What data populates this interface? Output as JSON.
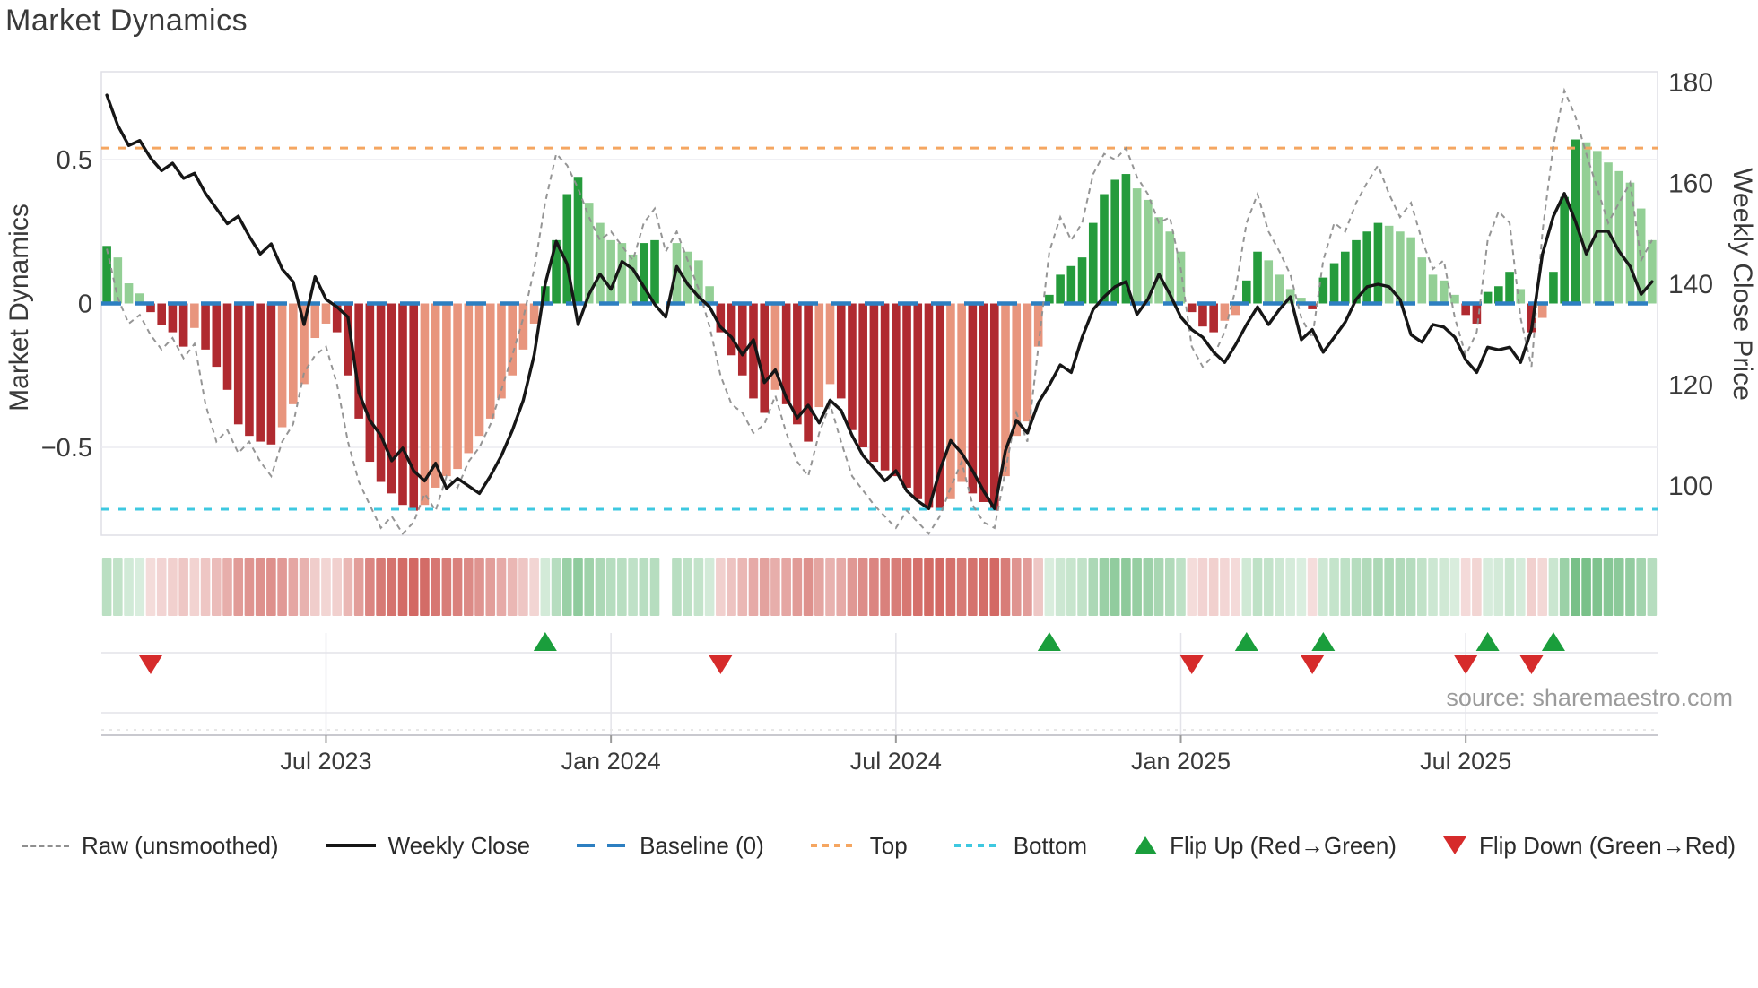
{
  "title": "Market Dynamics",
  "source": "source: sharemaestro.com",
  "left_axis": {
    "label": "Market Dynamics",
    "ticks": [
      {
        "value": 0.5,
        "label": "0.5"
      },
      {
        "value": 0,
        "label": "0"
      },
      {
        "value": -0.5,
        "label": "−0.5"
      }
    ]
  },
  "right_axis": {
    "label": "Weekly Close Price",
    "ticks": [
      {
        "value": 180,
        "label": "180"
      },
      {
        "value": 160,
        "label": "160"
      },
      {
        "value": 140,
        "label": "140"
      },
      {
        "value": 120,
        "label": "120"
      },
      {
        "value": 100,
        "label": "100"
      }
    ]
  },
  "legend": {
    "raw": "Raw (unsmoothed)",
    "close": "Weekly Close",
    "baseline": "Baseline (0)",
    "top": "Top",
    "bottom": "Bottom",
    "flip_up": "Flip Up (Red→Green)",
    "flip_down": "Flip Down (Green→Red)"
  },
  "colors": {
    "bar_strong_green": "#259b3c",
    "bar_soft_green": "#93cf95",
    "bar_strong_red": "#b02a30",
    "bar_soft_red": "#e8957d",
    "heat_green": "47,158,72",
    "heat_red": "198,63,56",
    "baseline": "#2d7fc1",
    "top_line": "#f5a661",
    "bottom_line": "#3ec8e0",
    "raw_line": "#8f8f8f",
    "price_line": "#161616",
    "flip_up": "#1a9e3c",
    "flip_down": "#d62b2b",
    "grid": "#ececf1",
    "spine": "#dfdfe6",
    "bottom_grid": "#e3e3e9",
    "axis_line": "#c9c9cf",
    "tick_text": "#3a3a3a"
  },
  "chart_data": {
    "type": "bar+line",
    "title": "Market Dynamics",
    "frequency": "weekly",
    "start_date": "2023-02-13",
    "weeks": 142,
    "ylabel_left": "Market Dynamics",
    "ylabel_right": "Weekly Close Price",
    "ylim_left": [
      -0.8,
      0.8
    ],
    "ylim_right": [
      88,
      182
    ],
    "reference_lines": {
      "baseline": 0,
      "top": 0.54,
      "bottom": -0.715
    },
    "x_ticks": [
      {
        "week": 20,
        "label": "Jul 2023"
      },
      {
        "week": 46,
        "label": "Jan 2024"
      },
      {
        "week": 72,
        "label": "Jul 2024"
      },
      {
        "week": 98,
        "label": "Jan 2025"
      },
      {
        "week": 124,
        "label": "Jul 2025"
      }
    ],
    "series": [
      {
        "name": "Market Dynamics (smoothed bars)",
        "axis": "left",
        "kind": "bar"
      },
      {
        "name": "Raw (unsmoothed)",
        "axis": "left",
        "kind": "dashed-line"
      },
      {
        "name": "Weekly Close",
        "axis": "right",
        "kind": "line"
      }
    ],
    "dynamics": [
      0.2,
      0.16,
      0.07,
      0.035,
      -0.03,
      -0.075,
      -0.1,
      -0.15,
      -0.085,
      -0.16,
      -0.22,
      -0.3,
      -0.42,
      -0.46,
      -0.48,
      -0.49,
      -0.43,
      -0.35,
      -0.28,
      -0.12,
      -0.07,
      -0.1,
      -0.25,
      -0.4,
      -0.55,
      -0.62,
      -0.66,
      -0.7,
      -0.72,
      -0.7,
      -0.64,
      -0.6,
      -0.575,
      -0.52,
      -0.46,
      -0.4,
      -0.33,
      -0.25,
      -0.16,
      -0.07,
      0.06,
      0.22,
      0.38,
      0.44,
      0.35,
      0.28,
      0.22,
      0.21,
      0.17,
      0.21,
      0.22,
      null,
      0.21,
      0.18,
      0.15,
      0.06,
      -0.1,
      -0.18,
      -0.25,
      -0.33,
      -0.38,
      -0.3,
      -0.35,
      -0.42,
      -0.48,
      -0.36,
      -0.28,
      -0.33,
      -0.44,
      -0.5,
      -0.55,
      -0.58,
      -0.6,
      -0.64,
      -0.68,
      -0.71,
      -0.72,
      -0.68,
      -0.62,
      -0.66,
      -0.69,
      -0.72,
      -0.6,
      -0.46,
      -0.41,
      -0.15,
      0.03,
      0.1,
      0.13,
      0.16,
      0.28,
      0.38,
      0.43,
      0.45,
      0.4,
      0.36,
      0.3,
      0.25,
      0.18,
      -0.03,
      -0.08,
      -0.1,
      -0.06,
      -0.04,
      0.08,
      0.18,
      0.15,
      0.1,
      0.05,
      0.02,
      -0.02,
      0.09,
      0.14,
      0.18,
      0.22,
      0.25,
      0.28,
      0.27,
      0.25,
      0.23,
      0.16,
      0.1,
      0.08,
      0.03,
      -0.04,
      -0.07,
      0.04,
      0.06,
      0.11,
      0.05,
      -0.1,
      -0.05,
      0.11,
      0.37,
      0.57,
      0.56,
      0.53,
      0.49,
      0.46,
      0.42,
      0.33,
      0.22
    ],
    "emphasis": [
      1,
      0,
      0,
      0,
      1,
      1,
      1,
      1,
      0,
      1,
      1,
      1,
      1,
      1,
      1,
      1,
      0,
      0,
      0,
      0,
      0,
      1,
      1,
      1,
      1,
      1,
      1,
      1,
      1,
      0,
      0,
      0,
      0,
      0,
      0,
      0,
      0,
      0,
      0,
      0,
      1,
      1,
      1,
      1,
      0,
      0,
      0,
      0,
      0,
      1,
      1,
      null,
      0,
      0,
      0,
      0,
      1,
      1,
      1,
      1,
      1,
      0,
      1,
      1,
      1,
      0,
      0,
      1,
      1,
      1,
      1,
      1,
      1,
      1,
      1,
      1,
      1,
      0,
      0,
      1,
      1,
      1,
      0,
      0,
      0,
      0,
      1,
      1,
      1,
      1,
      1,
      1,
      1,
      1,
      0,
      0,
      0,
      0,
      0,
      1,
      1,
      1,
      0,
      0,
      1,
      1,
      0,
      0,
      0,
      0,
      1,
      1,
      1,
      1,
      1,
      1,
      1,
      0,
      0,
      0,
      0,
      0,
      0,
      0,
      1,
      1,
      1,
      1,
      1,
      0,
      1,
      0,
      1,
      1,
      1,
      0,
      0,
      0,
      0,
      0,
      0,
      0
    ],
    "raw": [
      0.19,
      0.02,
      -0.07,
      -0.04,
      -0.11,
      -0.16,
      -0.12,
      -0.19,
      -0.14,
      -0.35,
      -0.48,
      -0.44,
      -0.52,
      -0.48,
      -0.55,
      -0.6,
      -0.48,
      -0.42,
      -0.24,
      -0.18,
      -0.15,
      -0.28,
      -0.48,
      -0.62,
      -0.7,
      -0.78,
      -0.74,
      -0.8,
      -0.76,
      -0.66,
      -0.72,
      -0.6,
      -0.64,
      -0.55,
      -0.5,
      -0.42,
      -0.3,
      -0.18,
      -0.05,
      0.12,
      0.35,
      0.52,
      0.48,
      0.4,
      0.3,
      0.22,
      0.25,
      0.2,
      0.15,
      0.28,
      0.33,
      0.18,
      0.25,
      0.15,
      0.05,
      -0.08,
      -0.25,
      -0.35,
      -0.38,
      -0.45,
      -0.42,
      -0.32,
      -0.45,
      -0.55,
      -0.6,
      -0.45,
      -0.35,
      -0.48,
      -0.6,
      -0.65,
      -0.7,
      -0.74,
      -0.78,
      -0.72,
      -0.76,
      -0.8,
      -0.74,
      -0.64,
      -0.55,
      -0.7,
      -0.76,
      -0.78,
      -0.58,
      -0.38,
      -0.48,
      -0.15,
      0.18,
      0.3,
      0.22,
      0.28,
      0.45,
      0.52,
      0.5,
      0.54,
      0.44,
      0.38,
      0.28,
      0.3,
      0.12,
      -0.15,
      -0.22,
      -0.18,
      -0.1,
      0.05,
      0.28,
      0.38,
      0.25,
      0.18,
      0.1,
      -0.05,
      -0.12,
      0.15,
      0.28,
      0.25,
      0.35,
      0.42,
      0.48,
      0.38,
      0.3,
      0.35,
      0.22,
      0.12,
      0.15,
      -0.05,
      -0.18,
      -0.1,
      0.22,
      0.32,
      0.28,
      -0.05,
      -0.22,
      0.25,
      0.55,
      0.74,
      0.65,
      0.52,
      0.4,
      0.28,
      0.35,
      0.42,
      0.15,
      0.22
    ],
    "price": [
      177.5,
      171.5,
      167.5,
      168.5,
      165,
      162.5,
      164,
      161,
      162,
      158,
      155,
      152,
      153.5,
      149.5,
      146,
      148,
      143,
      140.5,
      132,
      141.5,
      137,
      135.5,
      133.5,
      118.5,
      113,
      110,
      105,
      107.5,
      103,
      101,
      104.5,
      99.5,
      101.5,
      100,
      98.5,
      102,
      106,
      111,
      117,
      126,
      140,
      148.5,
      144,
      132,
      138,
      142,
      139,
      144.5,
      143,
      139.5,
      136,
      133.5,
      143.5,
      140,
      137.5,
      135.5,
      131.5,
      129.5,
      126,
      129,
      120.5,
      123,
      117.5,
      113.5,
      116,
      112.5,
      117,
      115,
      110,
      106,
      103.5,
      101,
      103,
      99,
      97,
      95.5,
      103,
      109,
      106.5,
      103,
      99,
      95.5,
      107,
      113,
      110.5,
      116.5,
      120,
      124,
      122.5,
      129.5,
      135,
      137.5,
      139.5,
      140.5,
      134,
      137,
      142,
      138,
      133.5,
      131,
      129.5,
      126.5,
      124.5,
      128,
      132,
      135.5,
      132,
      135,
      137.5,
      129,
      131,
      126.5,
      129.5,
      132.5,
      137,
      139.5,
      140,
      139.5,
      137,
      130,
      128.5,
      132,
      131.5,
      129.5,
      125,
      122.5,
      127.5,
      127,
      127.5,
      124.5,
      131,
      146,
      153.5,
      158,
      152.5,
      146,
      150.5,
      150.5,
      146.5,
      143.5,
      138,
      140.5
    ],
    "heatmap_source": "dynamics",
    "flip_up_weeks": [
      40,
      86,
      104,
      111,
      126,
      132
    ],
    "flip_down_weeks": [
      4,
      56,
      99,
      110,
      124,
      130
    ]
  }
}
